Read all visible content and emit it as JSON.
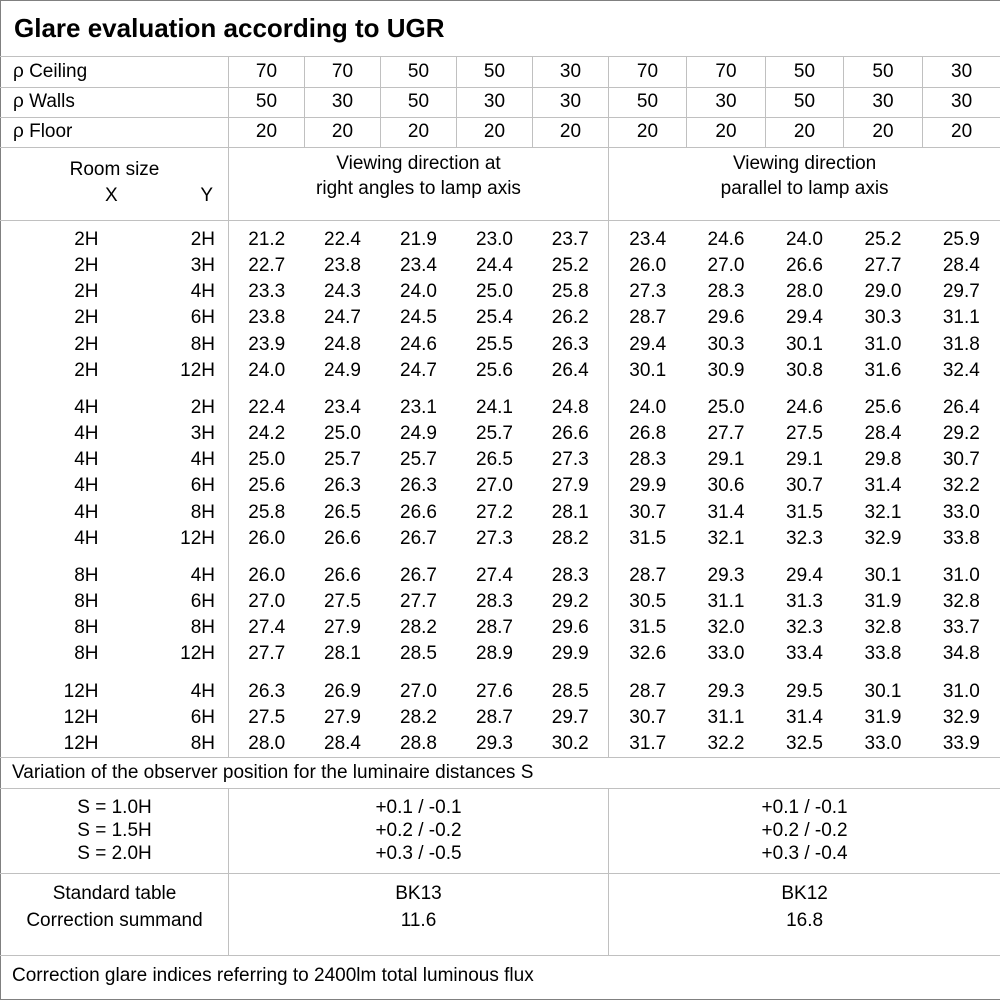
{
  "title": "Glare evaluation according to UGR",
  "reflectance_rows": [
    {
      "label": "ρ Ceiling",
      "values": [
        "70",
        "70",
        "50",
        "50",
        "30",
        "70",
        "70",
        "50",
        "50",
        "30"
      ]
    },
    {
      "label": "ρ Walls",
      "values": [
        "50",
        "30",
        "50",
        "30",
        "30",
        "50",
        "30",
        "50",
        "30",
        "30"
      ]
    },
    {
      "label": "ρ Floor",
      "values": [
        "20",
        "20",
        "20",
        "20",
        "20",
        "20",
        "20",
        "20",
        "20",
        "20"
      ]
    }
  ],
  "header": {
    "room_size": "Room size",
    "x": "X",
    "y": "Y",
    "right_angle_line1": "Viewing direction at",
    "right_angle_line2": "right angles to lamp axis",
    "parallel_line1": "Viewing direction",
    "parallel_line2": "parallel to lamp axis"
  },
  "room_blocks": [
    {
      "rows": [
        {
          "x": "2H",
          "y": "2H",
          "right_angle": [
            "21.2",
            "22.4",
            "21.9",
            "23.0",
            "23.7"
          ],
          "parallel": [
            "23.4",
            "24.6",
            "24.0",
            "25.2",
            "25.9"
          ]
        },
        {
          "x": "2H",
          "y": "3H",
          "right_angle": [
            "22.7",
            "23.8",
            "23.4",
            "24.4",
            "25.2"
          ],
          "parallel": [
            "26.0",
            "27.0",
            "26.6",
            "27.7",
            "28.4"
          ]
        },
        {
          "x": "2H",
          "y": "4H",
          "right_angle": [
            "23.3",
            "24.3",
            "24.0",
            "25.0",
            "25.8"
          ],
          "parallel": [
            "27.3",
            "28.3",
            "28.0",
            "29.0",
            "29.7"
          ]
        },
        {
          "x": "2H",
          "y": "6H",
          "right_angle": [
            "23.8",
            "24.7",
            "24.5",
            "25.4",
            "26.2"
          ],
          "parallel": [
            "28.7",
            "29.6",
            "29.4",
            "30.3",
            "31.1"
          ]
        },
        {
          "x": "2H",
          "y": "8H",
          "right_angle": [
            "23.9",
            "24.8",
            "24.6",
            "25.5",
            "26.3"
          ],
          "parallel": [
            "29.4",
            "30.3",
            "30.1",
            "31.0",
            "31.8"
          ]
        },
        {
          "x": "2H",
          "y": "12H",
          "right_angle": [
            "24.0",
            "24.9",
            "24.7",
            "25.6",
            "26.4"
          ],
          "parallel": [
            "30.1",
            "30.9",
            "30.8",
            "31.6",
            "32.4"
          ]
        }
      ]
    },
    {
      "rows": [
        {
          "x": "4H",
          "y": "2H",
          "right_angle": [
            "22.4",
            "23.4",
            "23.1",
            "24.1",
            "24.8"
          ],
          "parallel": [
            "24.0",
            "25.0",
            "24.6",
            "25.6",
            "26.4"
          ]
        },
        {
          "x": "4H",
          "y": "3H",
          "right_angle": [
            "24.2",
            "25.0",
            "24.9",
            "25.7",
            "26.6"
          ],
          "parallel": [
            "26.8",
            "27.7",
            "27.5",
            "28.4",
            "29.2"
          ]
        },
        {
          "x": "4H",
          "y": "4H",
          "right_angle": [
            "25.0",
            "25.7",
            "25.7",
            "26.5",
            "27.3"
          ],
          "parallel": [
            "28.3",
            "29.1",
            "29.1",
            "29.8",
            "30.7"
          ]
        },
        {
          "x": "4H",
          "y": "6H",
          "right_angle": [
            "25.6",
            "26.3",
            "26.3",
            "27.0",
            "27.9"
          ],
          "parallel": [
            "29.9",
            "30.6",
            "30.7",
            "31.4",
            "32.2"
          ]
        },
        {
          "x": "4H",
          "y": "8H",
          "right_angle": [
            "25.8",
            "26.5",
            "26.6",
            "27.2",
            "28.1"
          ],
          "parallel": [
            "30.7",
            "31.4",
            "31.5",
            "32.1",
            "33.0"
          ]
        },
        {
          "x": "4H",
          "y": "12H",
          "right_angle": [
            "26.0",
            "26.6",
            "26.7",
            "27.3",
            "28.2"
          ],
          "parallel": [
            "31.5",
            "32.1",
            "32.3",
            "32.9",
            "33.8"
          ]
        }
      ]
    },
    {
      "rows": [
        {
          "x": "8H",
          "y": "4H",
          "right_angle": [
            "26.0",
            "26.6",
            "26.7",
            "27.4",
            "28.3"
          ],
          "parallel": [
            "28.7",
            "29.3",
            "29.4",
            "30.1",
            "31.0"
          ]
        },
        {
          "x": "8H",
          "y": "6H",
          "right_angle": [
            "27.0",
            "27.5",
            "27.7",
            "28.3",
            "29.2"
          ],
          "parallel": [
            "30.5",
            "31.1",
            "31.3",
            "31.9",
            "32.8"
          ]
        },
        {
          "x": "8H",
          "y": "8H",
          "right_angle": [
            "27.4",
            "27.9",
            "28.2",
            "28.7",
            "29.6"
          ],
          "parallel": [
            "31.5",
            "32.0",
            "32.3",
            "32.8",
            "33.7"
          ]
        },
        {
          "x": "8H",
          "y": "12H",
          "right_angle": [
            "27.7",
            "28.1",
            "28.5",
            "28.9",
            "29.9"
          ],
          "parallel": [
            "32.6",
            "33.0",
            "33.4",
            "33.8",
            "34.8"
          ]
        }
      ]
    },
    {
      "rows": [
        {
          "x": "12H",
          "y": "4H",
          "right_angle": [
            "26.3",
            "26.9",
            "27.0",
            "27.6",
            "28.5"
          ],
          "parallel": [
            "28.7",
            "29.3",
            "29.5",
            "30.1",
            "31.0"
          ]
        },
        {
          "x": "12H",
          "y": "6H",
          "right_angle": [
            "27.5",
            "27.9",
            "28.2",
            "28.7",
            "29.7"
          ],
          "parallel": [
            "30.7",
            "31.1",
            "31.4",
            "31.9",
            "32.9"
          ]
        },
        {
          "x": "12H",
          "y": "8H",
          "right_angle": [
            "28.0",
            "28.4",
            "28.8",
            "29.3",
            "30.2"
          ],
          "parallel": [
            "31.7",
            "32.2",
            "32.5",
            "33.0",
            "33.9"
          ]
        }
      ]
    }
  ],
  "variation": {
    "note": "Variation of the observer position for the luminaire distances S",
    "s_labels": [
      "S = 1.0H",
      "S = 1.5H",
      "S = 2.0H"
    ],
    "right_angle_values": [
      "+0.1 / -0.1",
      "+0.2 / -0.2",
      "+0.3 / -0.5"
    ],
    "parallel_values": [
      "+0.1 / -0.1",
      "+0.2 / -0.2",
      "+0.3 / -0.4"
    ]
  },
  "summary": {
    "labels": [
      "Standard table",
      "Correction summand"
    ],
    "right_angle_values": [
      "BK13",
      "11.6"
    ],
    "parallel_values": [
      "BK12",
      "16.8"
    ]
  },
  "footer": "Correction glare indices referring to 2400lm total luminous flux",
  "colors": {
    "background": "#ffffff",
    "text": "#000000",
    "border_outer": "#808080",
    "border_inner": "#c0c0c0"
  }
}
